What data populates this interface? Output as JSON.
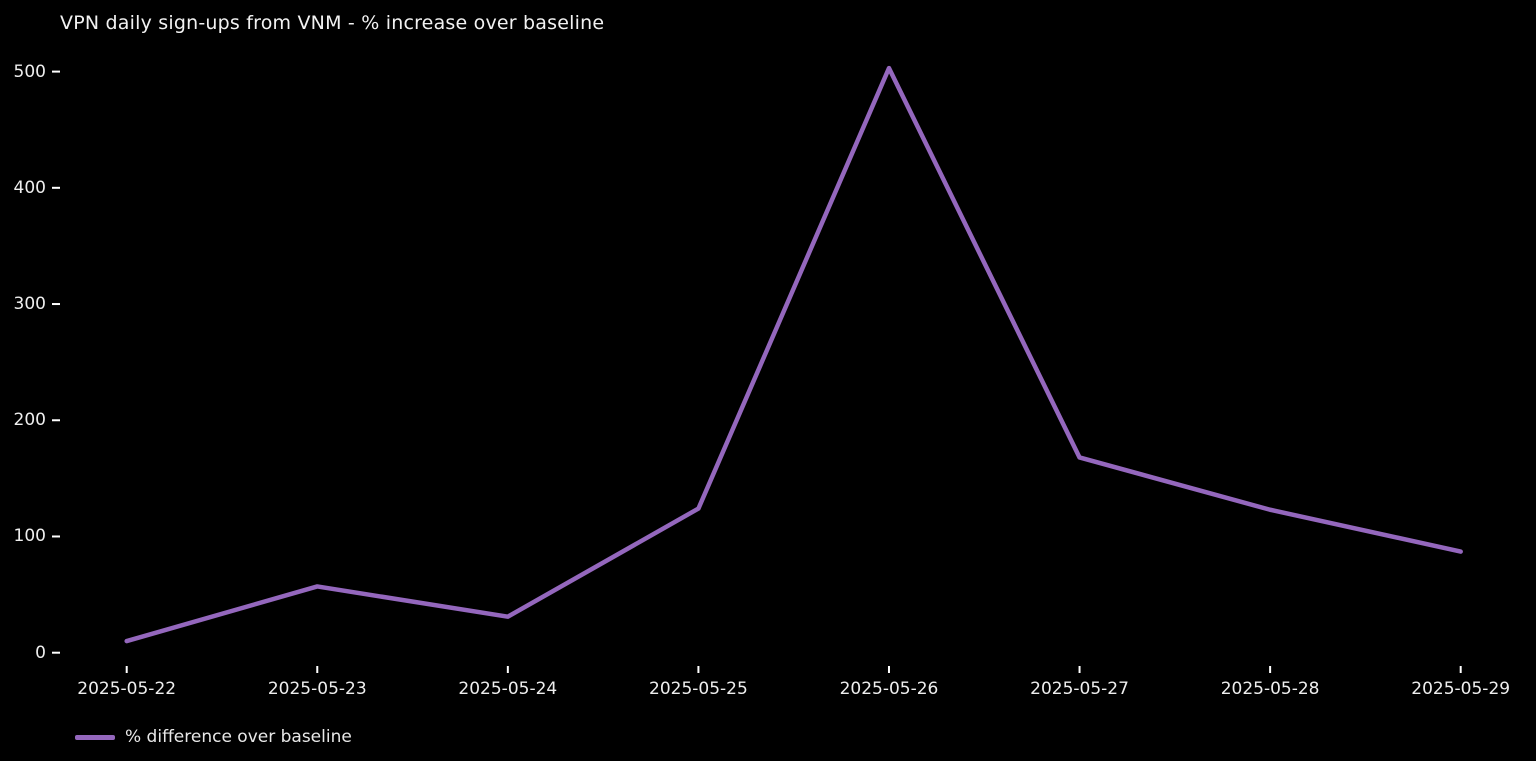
{
  "chart_data": {
    "type": "line",
    "title": "VPN daily sign-ups from VNM - % increase over baseline",
    "categories": [
      "2025-05-22",
      "2025-05-23",
      "2025-05-24",
      "2025-05-25",
      "2025-05-26",
      "2025-05-27",
      "2025-05-28",
      "2025-05-29"
    ],
    "series": [
      {
        "name": "% difference over baseline",
        "values": [
          10,
          57,
          31,
          124,
          503,
          168,
          123,
          87
        ],
        "color": "#9467bd"
      }
    ],
    "xlabel": "",
    "ylabel": "",
    "ylim": [
      0,
      520
    ],
    "yticks": [
      0,
      100,
      200,
      300,
      400,
      500
    ],
    "grid": false,
    "legend_position": "bottom-left",
    "background_color": "#000000",
    "text_color": "#eeeeee",
    "tick_color": "#ffffff"
  }
}
